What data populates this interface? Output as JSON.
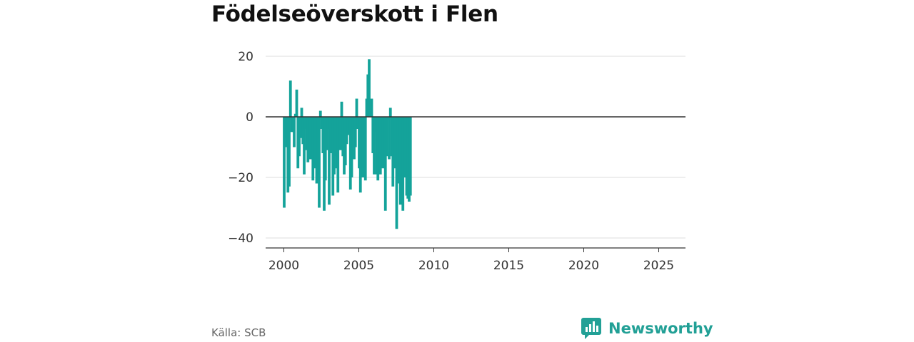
{
  "colors": {
    "bar": "#14a39a",
    "brand": "#22a096",
    "grid": "#dddddd",
    "zero_line": "#333333",
    "axis": "#333333"
  },
  "chart_data": {
    "type": "bar",
    "title": "Födelseöverskott i Flen",
    "xlabel": "",
    "ylabel": "",
    "xlim": [
      2000,
      2025.75
    ],
    "ylim": [
      -40,
      20
    ],
    "y_ticks": [
      20,
      0,
      -20,
      -40
    ],
    "y_tick_labels": [
      "20",
      "0",
      "−20",
      "−40"
    ],
    "x_ticks": [
      2000,
      2005,
      2010,
      2015,
      2020,
      2025
    ],
    "grid": true,
    "x_start": "2000-01",
    "period": "month",
    "values": [
      -30,
      -7,
      -10,
      -25,
      -23,
      12,
      -5,
      -5,
      -10,
      1,
      9,
      -17,
      -13,
      -7,
      3,
      -9,
      -19,
      -4,
      -11,
      -15,
      -11,
      -14,
      -13,
      -21,
      -17,
      -16,
      -22,
      -19,
      -30,
      2,
      -4,
      -12,
      -31,
      -21,
      -11,
      -4,
      -29,
      -12,
      -8,
      -26,
      -19,
      -13,
      -17,
      -25,
      -9,
      -11,
      5,
      -13,
      -19,
      -16,
      -9,
      -6,
      -2,
      -24,
      -20,
      -4,
      -14,
      -10,
      6,
      -4,
      -17,
      -25,
      -5,
      -20,
      -13,
      -21,
      6,
      14,
      19,
      2,
      6,
      -12,
      -19,
      -5,
      -19,
      -21,
      -7,
      -19,
      -7,
      -17,
      -11,
      -31,
      -13,
      -1,
      -14,
      3,
      -13,
      -23,
      -13,
      -17,
      -37,
      -21,
      -22,
      -29,
      -11,
      -31,
      -11,
      -20,
      -26,
      -27,
      -28,
      -26
    ]
  },
  "source": "Källa: SCB",
  "brand": {
    "name": "Newsworthy",
    "icon": "bar-chart-speech-icon"
  }
}
